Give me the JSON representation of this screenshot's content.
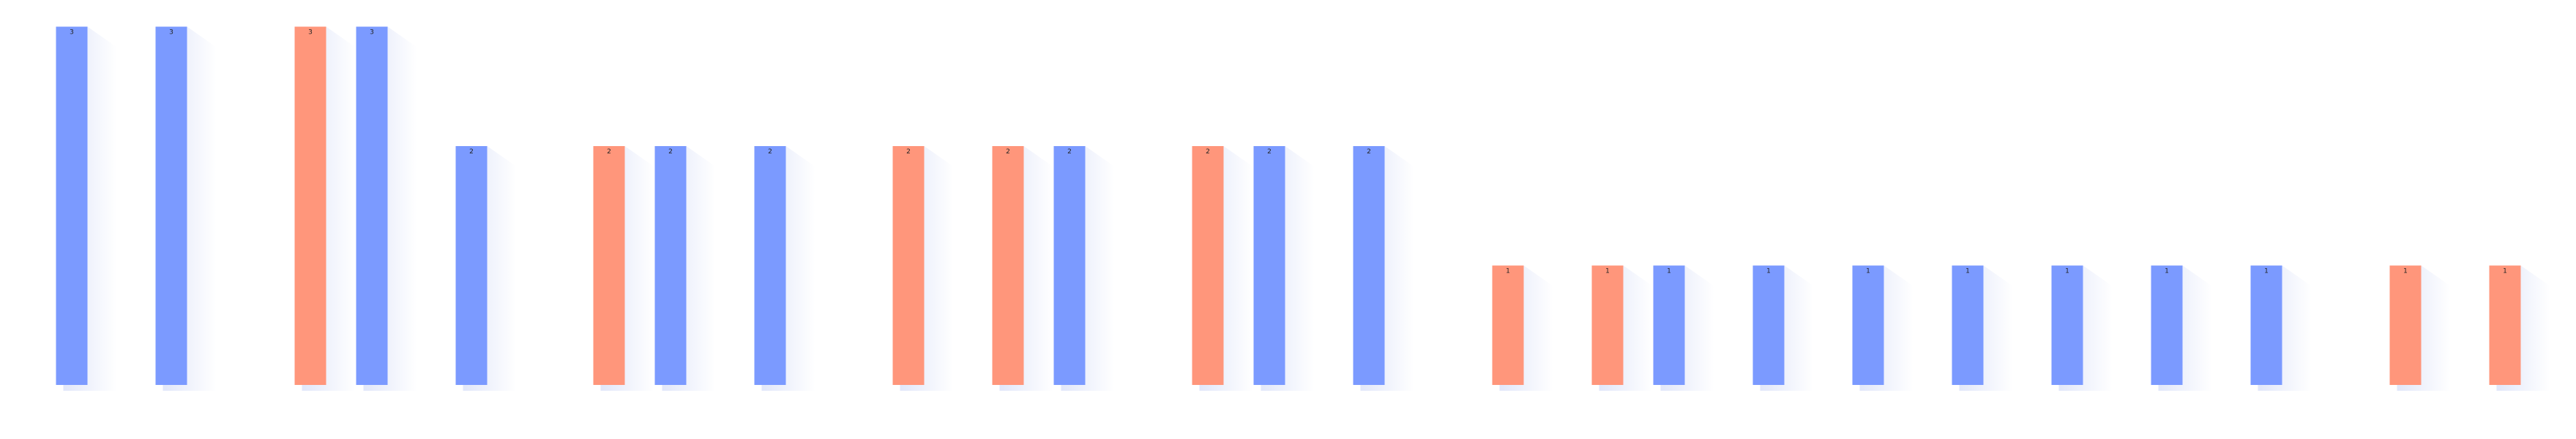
{
  "chart_data": {
    "type": "bar",
    "title": "",
    "xlabel": "",
    "ylabel": "",
    "ylim": [
      0,
      3
    ],
    "colors": {
      "blue": "#7b9aff",
      "orange": "#ff967b",
      "shadow": "#c9d3f5"
    },
    "bars": [
      {
        "value": 3,
        "label": "3",
        "color": "blue"
      },
      {
        "value": 3,
        "label": "3",
        "color": "blue"
      },
      {
        "value": 3,
        "label": "3",
        "color": "orange"
      },
      {
        "value": 3,
        "label": "3",
        "color": "blue"
      },
      {
        "value": 2,
        "label": "2",
        "color": "blue"
      },
      {
        "value": 2,
        "label": "2",
        "color": "orange"
      },
      {
        "value": 2,
        "label": "2",
        "color": "blue"
      },
      {
        "value": 2,
        "label": "2",
        "color": "blue"
      },
      {
        "value": 2,
        "label": "2",
        "color": "orange"
      },
      {
        "value": 2,
        "label": "2",
        "color": "orange"
      },
      {
        "value": 2,
        "label": "2",
        "color": "blue"
      },
      {
        "value": 2,
        "label": "2",
        "color": "orange"
      },
      {
        "value": 2,
        "label": "2",
        "color": "blue"
      },
      {
        "value": 2,
        "label": "2",
        "color": "blue"
      },
      {
        "value": 1,
        "label": "1",
        "color": "orange"
      },
      {
        "value": 1,
        "label": "1",
        "color": "orange"
      },
      {
        "value": 1,
        "label": "1",
        "color": "blue"
      },
      {
        "value": 1,
        "label": "1",
        "color": "blue"
      },
      {
        "value": 1,
        "label": "1",
        "color": "blue"
      },
      {
        "value": 1,
        "label": "1",
        "color": "blue"
      },
      {
        "value": 1,
        "label": "1",
        "color": "blue"
      },
      {
        "value": 1,
        "label": "1",
        "color": "blue"
      },
      {
        "value": 1,
        "label": "1",
        "color": "blue"
      },
      {
        "value": 1,
        "label": "1",
        "color": "orange"
      },
      {
        "value": 1,
        "label": "1",
        "color": "orange"
      }
    ]
  }
}
